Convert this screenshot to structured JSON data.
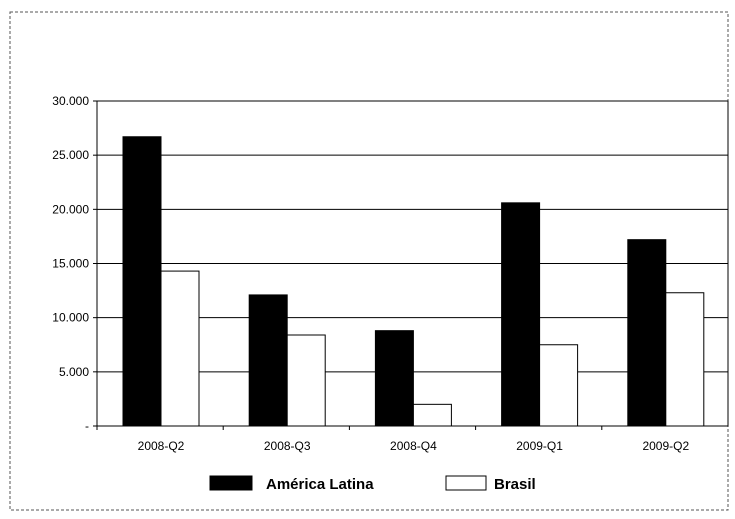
{
  "chart_data": {
    "type": "bar",
    "title": "",
    "xlabel": "",
    "ylabel": "",
    "categories": [
      "2008-Q2",
      "2008-Q3",
      "2008-Q4",
      "2009-Q1",
      "2009-Q2"
    ],
    "series": [
      {
        "name": "América Latina",
        "values": [
          26700,
          12100,
          8800,
          20600,
          17200
        ],
        "color": "#000000"
      },
      {
        "name": "Brasil",
        "values": [
          14300,
          8400,
          2000,
          7500,
          12300
        ],
        "color": "#ffffff"
      }
    ],
    "ylim": [
      0,
      30000
    ],
    "yticks": [
      0,
      5000,
      10000,
      15000,
      20000,
      25000,
      30000
    ],
    "ytick_labels": [
      "-",
      "5.000",
      "10.000",
      "15.000",
      "20.000",
      "25.000",
      "30.000"
    ],
    "grid": true,
    "legend_position": "bottom"
  }
}
